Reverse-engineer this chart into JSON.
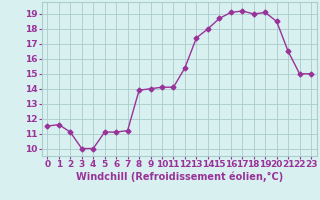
{
  "x": [
    0,
    1,
    2,
    3,
    4,
    5,
    6,
    7,
    8,
    9,
    10,
    11,
    12,
    13,
    14,
    15,
    16,
    17,
    18,
    19,
    20,
    21,
    22,
    23
  ],
  "y": [
    11.5,
    11.6,
    11.1,
    10.0,
    10.0,
    11.1,
    11.1,
    11.2,
    13.9,
    14.0,
    14.1,
    14.1,
    15.4,
    17.4,
    18.0,
    18.7,
    19.1,
    19.2,
    19.0,
    19.1,
    18.5,
    16.5,
    15.0,
    15.0
  ],
  "line_color": "#993399",
  "marker": "D",
  "marker_size": 2.5,
  "line_width": 1.0,
  "bg_color": "#d8f0f0",
  "grid_color": "#aacccc",
  "xlabel": "Windchill (Refroidissement éolien,°C)",
  "xlabel_color": "#993399",
  "xlabel_fontsize": 7,
  "tick_color": "#993399",
  "tick_fontsize": 6.5,
  "ylim": [
    9.5,
    19.8
  ],
  "xlim": [
    -0.5,
    23.5
  ],
  "yticks": [
    10,
    11,
    12,
    13,
    14,
    15,
    16,
    17,
    18,
    19
  ],
  "xticks": [
    0,
    1,
    2,
    3,
    4,
    5,
    6,
    7,
    8,
    9,
    10,
    11,
    12,
    13,
    14,
    15,
    16,
    17,
    18,
    19,
    20,
    21,
    22,
    23
  ]
}
